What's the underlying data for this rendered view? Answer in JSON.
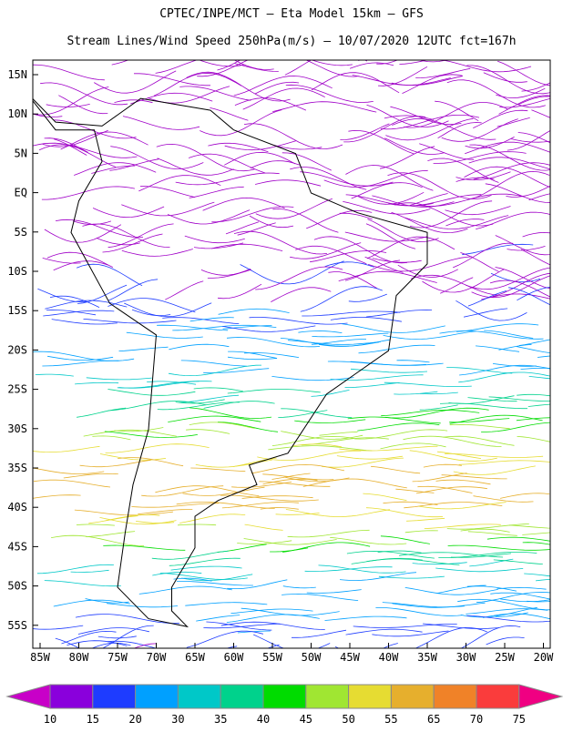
{
  "header": {
    "title": "CPTEC/INPE/MCT –  Eta Model 15km – GFS",
    "subtitle": "Stream Lines/Wind Speed 250hPa(m/s) – 10/07/2020 12UTC fct=167h"
  },
  "map": {
    "lat_labels": [
      "15N",
      "10N",
      "5N",
      "EQ",
      "5S",
      "10S",
      "15S",
      "20S",
      "25S",
      "30S",
      "35S",
      "40S",
      "45S",
      "50S",
      "55S"
    ],
    "lon_labels": [
      "85W",
      "80W",
      "75W",
      "70W",
      "65W",
      "60W",
      "55W",
      "50W",
      "45W",
      "40W",
      "35W",
      "30W",
      "25W",
      "20W"
    ]
  },
  "colorbar": {
    "labels": [
      "10",
      "15",
      "20",
      "30",
      "35",
      "40",
      "45",
      "50",
      "55",
      "65",
      "70",
      "75"
    ],
    "low_color": "#c800c8",
    "high_color": "#f00082",
    "colors": [
      "#8a00dc",
      "#1e3cff",
      "#00a0ff",
      "#00c8c8",
      "#00d28c",
      "#00dc00",
      "#a0e632",
      "#e6dc32",
      "#e6af2d",
      "#f08228",
      "#fa3c3c"
    ]
  }
}
